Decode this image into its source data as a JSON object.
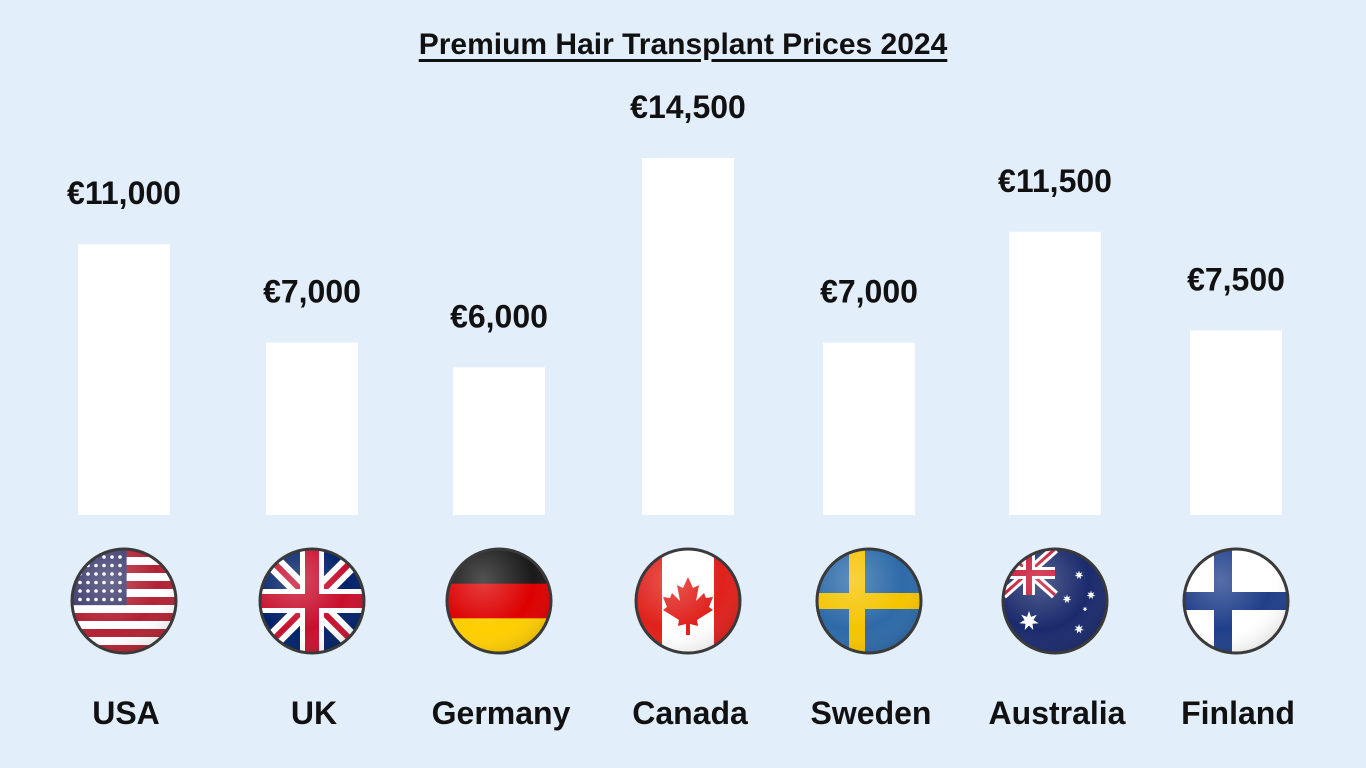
{
  "chart_data": {
    "type": "bar",
    "title": "Premium Hair Transplant Prices 2024",
    "categories": [
      "USA",
      "UK",
      "Germany",
      "Canada",
      "Sweden",
      "Australia",
      "Finland"
    ],
    "values": [
      11000,
      7000,
      6000,
      14500,
      7000,
      11500,
      7500
    ],
    "value_labels": [
      "€11,000",
      "€7,000",
      "€6,000",
      "€14,500",
      "€7,000",
      "€11,500",
      "€7,500"
    ],
    "icons": [
      "usa-flag-icon",
      "uk-flag-icon",
      "germany-flag-icon",
      "canada-flag-icon",
      "sweden-flag-icon",
      "australia-flag-icon",
      "finland-flag-icon"
    ],
    "xlabel": "",
    "ylabel": "",
    "ylim": [
      0,
      14500
    ],
    "grid": false,
    "legend": "none",
    "colors": {
      "background": "#e3eefb",
      "bar": "#ffffff",
      "text": "#111111"
    }
  }
}
